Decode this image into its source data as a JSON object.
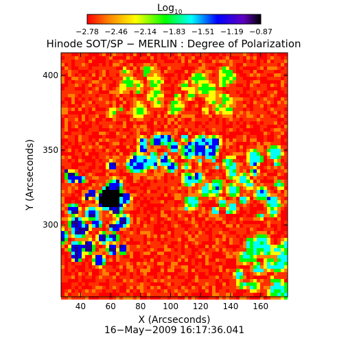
{
  "chart_data": {
    "type": "heatmap",
    "title": "Hinode SOT/SP − MERLIN : Degree of Polarization",
    "xlabel": "X (Arcseconds)",
    "ylabel": "Y (Arcseconds)",
    "date": "16−May−2009 16:17:36.041",
    "xlim": [
      27,
      178
    ],
    "ylim": [
      252,
      415
    ],
    "x_ticks": [
      {
        "value": 40,
        "label": "40"
      },
      {
        "value": 60,
        "label": "60"
      },
      {
        "value": 80,
        "label": "80"
      },
      {
        "value": 100,
        "label": "100"
      },
      {
        "value": 120,
        "label": "120"
      },
      {
        "value": 140,
        "label": "140"
      },
      {
        "value": 160,
        "label": "160"
      }
    ],
    "y_ticks": [
      {
        "value": 300,
        "label": "300"
      },
      {
        "value": 350,
        "label": "350"
      },
      {
        "value": 400,
        "label": "400"
      }
    ],
    "colorbar": {
      "title_main": "Log",
      "title_sub": "10",
      "range": [
        -2.78,
        -0.87
      ],
      "tick_labels": [
        "−2.78",
        "−2.46",
        "−2.14",
        "−1.83",
        "−1.51",
        "−1.19",
        "−0.87"
      ],
      "colors": [
        "#ff0000",
        "#ff8000",
        "#ffff00",
        "#00ff00",
        "#00ffff",
        "#0000ff",
        "#8000ff",
        "#000000"
      ]
    },
    "background_level_log10": -2.78,
    "features": [
      {
        "name": "enhanced-region-left",
        "x": [
          27,
          70
        ],
        "y": [
          270,
          340
        ],
        "level_log10": -1.3
      },
      {
        "name": "dark-core-left",
        "x": [
          55,
          65
        ],
        "y": [
          314,
          322
        ],
        "level_log10": -0.9
      },
      {
        "name": "network-center-top",
        "x": [
          75,
          130
        ],
        "y": [
          338,
          360
        ],
        "level_log10": -1.5
      },
      {
        "name": "network-center-right",
        "x": [
          110,
          175
        ],
        "y": [
          305,
          350
        ],
        "level_log10": -1.6
      },
      {
        "name": "network-bottom-right",
        "x": [
          145,
          178
        ],
        "y": [
          255,
          290
        ],
        "level_log10": -1.7
      },
      {
        "name": "streak-top",
        "x": [
          60,
          145
        ],
        "y": [
          375,
          405
        ],
        "level_log10": -1.9
      }
    ]
  }
}
